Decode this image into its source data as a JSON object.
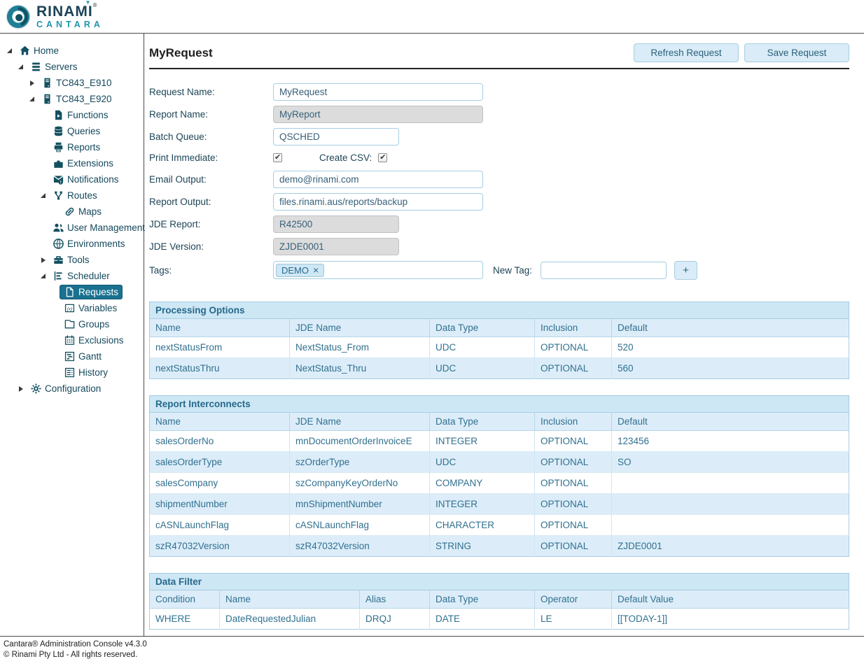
{
  "brand": {
    "line1": "RINAMI",
    "line2": "CANTARA",
    "registered": "®",
    "logo_icon": "rinami-swirl-icon"
  },
  "colors": {
    "brand_teal": "#2095ad",
    "brand_navy": "#1c4257",
    "tree_text": "#14485c",
    "selected_item_bg": "#1a7190",
    "panel_blue": "#cde7f5",
    "row_alt_blue": "#dcedf9",
    "table_text": "#31708f",
    "button_bg": "#d9ecf7",
    "input_border": "#a5cde2",
    "disabled_input_bg": "#dcdcdc"
  },
  "page": {
    "title": "MyRequest",
    "refresh_button": "Refresh Request",
    "save_button": "Save Request"
  },
  "sidebar": {
    "items": [
      {
        "label": "Home",
        "icon": "home-icon",
        "level": 0,
        "state": "expanded",
        "selected": false
      },
      {
        "label": "Servers",
        "icon": "servers-icon",
        "level": 1,
        "state": "expanded",
        "selected": false
      },
      {
        "label": "TC843_E910",
        "icon": "server-icon",
        "level": 2,
        "state": "collapsed",
        "selected": false
      },
      {
        "label": "TC843_E920",
        "icon": "server-icon",
        "level": 2,
        "state": "expanded",
        "selected": false
      },
      {
        "label": "Functions",
        "icon": "functions-icon",
        "level": 3,
        "state": "none",
        "selected": false
      },
      {
        "label": "Queries",
        "icon": "queries-icon",
        "level": 3,
        "state": "none",
        "selected": false
      },
      {
        "label": "Reports",
        "icon": "reports-icon",
        "level": 3,
        "state": "none",
        "selected": false
      },
      {
        "label": "Extensions",
        "icon": "extensions-icon",
        "level": 3,
        "state": "none",
        "selected": false
      },
      {
        "label": "Notifications",
        "icon": "notifications-icon",
        "level": 3,
        "state": "none",
        "selected": false
      },
      {
        "label": "Routes",
        "icon": "routes-icon",
        "level": 3,
        "state": "expanded",
        "selected": false
      },
      {
        "label": "Maps",
        "icon": "maps-icon",
        "level": 4,
        "state": "none",
        "selected": false
      },
      {
        "label": "User Management",
        "icon": "user-management-icon",
        "level": 3,
        "state": "none",
        "selected": false
      },
      {
        "label": "Environments",
        "icon": "environments-icon",
        "level": 3,
        "state": "none",
        "selected": false
      },
      {
        "label": "Tools",
        "icon": "tools-icon",
        "level": 3,
        "state": "collapsed",
        "selected": false
      },
      {
        "label": "Scheduler",
        "icon": "scheduler-icon",
        "level": 3,
        "state": "expanded",
        "selected": false
      },
      {
        "label": "Requests",
        "icon": "requests-icon",
        "level": 4,
        "state": "none",
        "selected": true
      },
      {
        "label": "Variables",
        "icon": "variables-icon",
        "level": 4,
        "state": "none",
        "selected": false
      },
      {
        "label": "Groups",
        "icon": "groups-icon",
        "level": 4,
        "state": "none",
        "selected": false
      },
      {
        "label": "Exclusions",
        "icon": "exclusions-icon",
        "level": 4,
        "state": "none",
        "selected": false
      },
      {
        "label": "Gantt",
        "icon": "gantt-icon",
        "level": 4,
        "state": "none",
        "selected": false
      },
      {
        "label": "History",
        "icon": "history-icon",
        "level": 4,
        "state": "none",
        "selected": false
      },
      {
        "label": "Configuration",
        "icon": "configuration-icon",
        "level": 1,
        "state": "collapsed",
        "selected": false
      }
    ]
  },
  "form": {
    "rows": [
      {
        "type": "text",
        "label": "Request Name:",
        "value": "MyRequest",
        "size": "wide",
        "disabled": false
      },
      {
        "type": "text",
        "label": "Report Name:",
        "value": "MyReport",
        "size": "wide",
        "disabled": true
      },
      {
        "type": "text",
        "label": "Batch Queue:",
        "value": "QSCHED",
        "size": "narrow",
        "disabled": false
      },
      {
        "type": "checkbox-pair",
        "label": "Print Immediate:",
        "checked": true,
        "label2": "Create CSV:",
        "checked2": true
      },
      {
        "type": "text",
        "label": "Email Output:",
        "value": "demo@rinami.com",
        "size": "wide",
        "disabled": false
      },
      {
        "type": "text",
        "label": "Report Output:",
        "value": "files.rinami.aus/reports/backup",
        "size": "wide",
        "disabled": false
      },
      {
        "type": "text",
        "label": "JDE Report:",
        "value": "R42500",
        "size": "narrow",
        "disabled": true
      },
      {
        "type": "text",
        "label": "JDE Version:",
        "value": "ZJDE0001",
        "size": "narrow",
        "disabled": true
      },
      {
        "type": "tags",
        "label": "Tags:",
        "chips": [
          "DEMO"
        ],
        "remove_icon": "×",
        "new_tag_label": "New Tag:",
        "new_tag_value": "",
        "add_button_label": "+"
      }
    ]
  },
  "tables": [
    {
      "title": "Processing Options",
      "columns": [
        "Name",
        "JDE Name",
        "Data Type",
        "Inclusion",
        "Default"
      ],
      "rows": [
        [
          "nextStatusFrom",
          "NextStatus_From",
          "UDC",
          "OPTIONAL",
          "520"
        ],
        [
          "nextStatusThru",
          "NextStatus_Thru",
          "UDC",
          "OPTIONAL",
          "560"
        ]
      ]
    },
    {
      "title": "Report Interconnects",
      "columns": [
        "Name",
        "JDE Name",
        "Data Type",
        "Inclusion",
        "Default"
      ],
      "rows": [
        [
          "salesOrderNo",
          "mnDocumentOrderInvoiceE",
          "INTEGER",
          "OPTIONAL",
          "123456"
        ],
        [
          "salesOrderType",
          "szOrderType",
          "UDC",
          "OPTIONAL",
          "SO"
        ],
        [
          "salesCompany",
          "szCompanyKeyOrderNo",
          "COMPANY",
          "OPTIONAL",
          ""
        ],
        [
          "shipmentNumber",
          "mnShipmentNumber",
          "INTEGER",
          "OPTIONAL",
          ""
        ],
        [
          "cASNLaunchFlag",
          "cASNLaunchFlag",
          "CHARACTER",
          "OPTIONAL",
          ""
        ],
        [
          "szR47032Version",
          "szR47032Version",
          "STRING",
          "OPTIONAL",
          "ZJDE0001"
        ]
      ]
    },
    {
      "title": "Data Filter",
      "columns": [
        "Condition",
        "Name",
        "Alias",
        "Data Type",
        "Operator",
        "Default Value"
      ],
      "rows": [
        [
          "WHERE",
          "DateRequestedJulian",
          "DRQJ",
          "DATE",
          "LE",
          "[[TODAY-1]]"
        ]
      ]
    }
  ],
  "footer": {
    "line1": "Cantara® Administration Console v4.3.0",
    "line2": "© Rinami Pty Ltd - All rights reserved."
  }
}
